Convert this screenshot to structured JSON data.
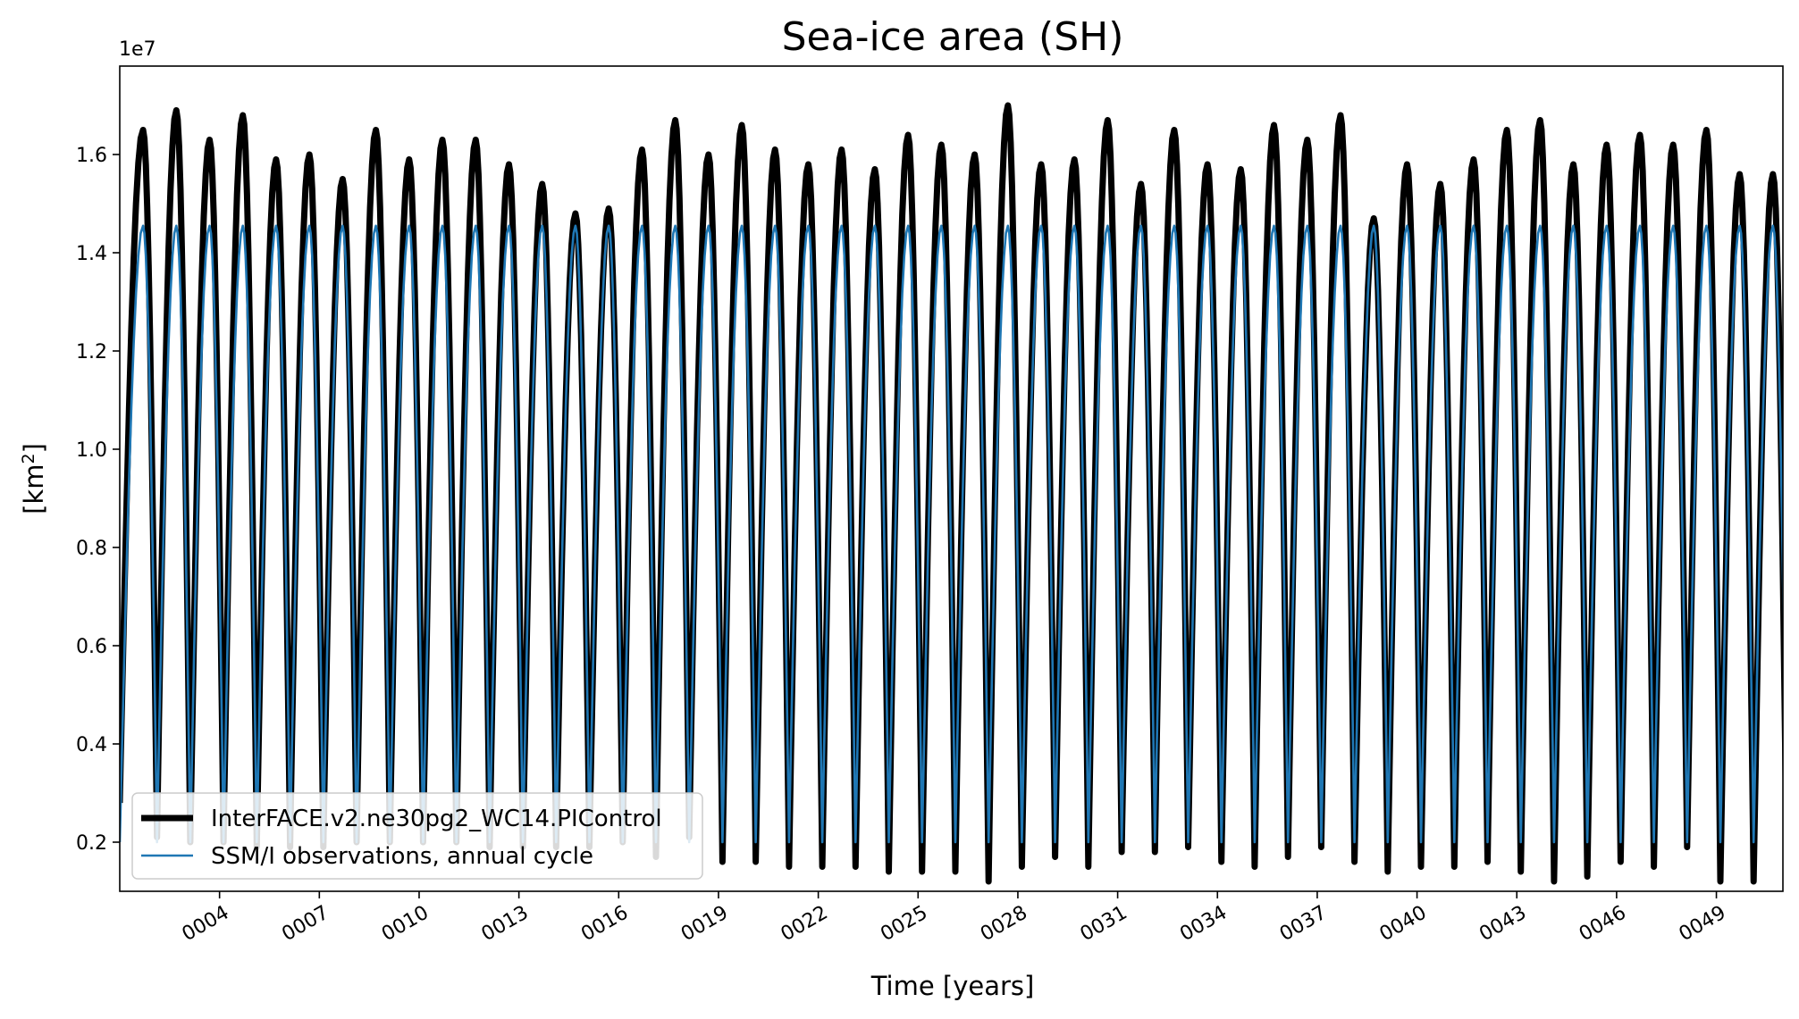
{
  "chart_data": {
    "type": "line",
    "title": "Sea-ice area (SH)",
    "xlabel": "Time [years]",
    "ylabel_main": "[km",
    "ylabel_sup": "2",
    "ylabel_close": "]",
    "y_offset_label": "1e7",
    "xlim": [
      1.0,
      51.0
    ],
    "ylim": [
      1000000,
      17800000
    ],
    "x_tick_values": [
      4,
      7,
      10,
      13,
      16,
      19,
      22,
      25,
      28,
      31,
      34,
      37,
      40,
      43,
      46,
      49
    ],
    "x_tick_labels": [
      "0004",
      "0007",
      "0010",
      "0013",
      "0016",
      "0019",
      "0022",
      "0025",
      "0028",
      "0031",
      "0034",
      "0037",
      "0040",
      "0043",
      "0046",
      "0049"
    ],
    "y_tick_values": [
      2000000,
      4000000,
      6000000,
      8000000,
      10000000,
      12000000,
      14000000,
      16000000
    ],
    "y_tick_labels": [
      "0.2",
      "0.4",
      "0.6",
      "0.8",
      "1.0",
      "1.2",
      "1.4",
      "1.6"
    ],
    "legend_position": "lower-left",
    "series": [
      {
        "name": "InterFACE.v2.ne30pg2_WC14.PIControl",
        "color": "#000000",
        "kind": "model",
        "start_value": 2800000,
        "annual_max": [
          16500000,
          16900000,
          16300000,
          16800000,
          15900000,
          16000000,
          15500000,
          16500000,
          15900000,
          16300000,
          16300000,
          15800000,
          15400000,
          14800000,
          14900000,
          16100000,
          16700000,
          16000000,
          16600000,
          16100000,
          15800000,
          16100000,
          15700000,
          16400000,
          16200000,
          16000000,
          17000000,
          15800000,
          15900000,
          16700000,
          15400000,
          16500000,
          15800000,
          15700000,
          16600000,
          16300000,
          16800000,
          14700000,
          15800000,
          15400000,
          15900000,
          16500000,
          16700000,
          15800000,
          16200000,
          16400000,
          16200000,
          16500000,
          15600000,
          15600000
        ],
        "annual_min": [
          2300000,
          2100000,
          2000000,
          2000000,
          1900000,
          1900000,
          1900000,
          2000000,
          2000000,
          2000000,
          2000000,
          1900000,
          1900000,
          1900000,
          1900000,
          2000000,
          1700000,
          2100000,
          1600000,
          1600000,
          1500000,
          1500000,
          1500000,
          1400000,
          1400000,
          1400000,
          1200000,
          1500000,
          1700000,
          1500000,
          1800000,
          1800000,
          1900000,
          1600000,
          1500000,
          1700000,
          1900000,
          1600000,
          1400000,
          1500000,
          1500000,
          1600000,
          1400000,
          1200000,
          1300000,
          1600000,
          1500000,
          1900000,
          1200000
        ]
      },
      {
        "name": "SSM/I observations, annual cycle",
        "color": "#1f77b4",
        "kind": "observations",
        "start_value": 2000000,
        "annual_max_value": 14550000,
        "annual_min_value": 2000000
      }
    ]
  }
}
